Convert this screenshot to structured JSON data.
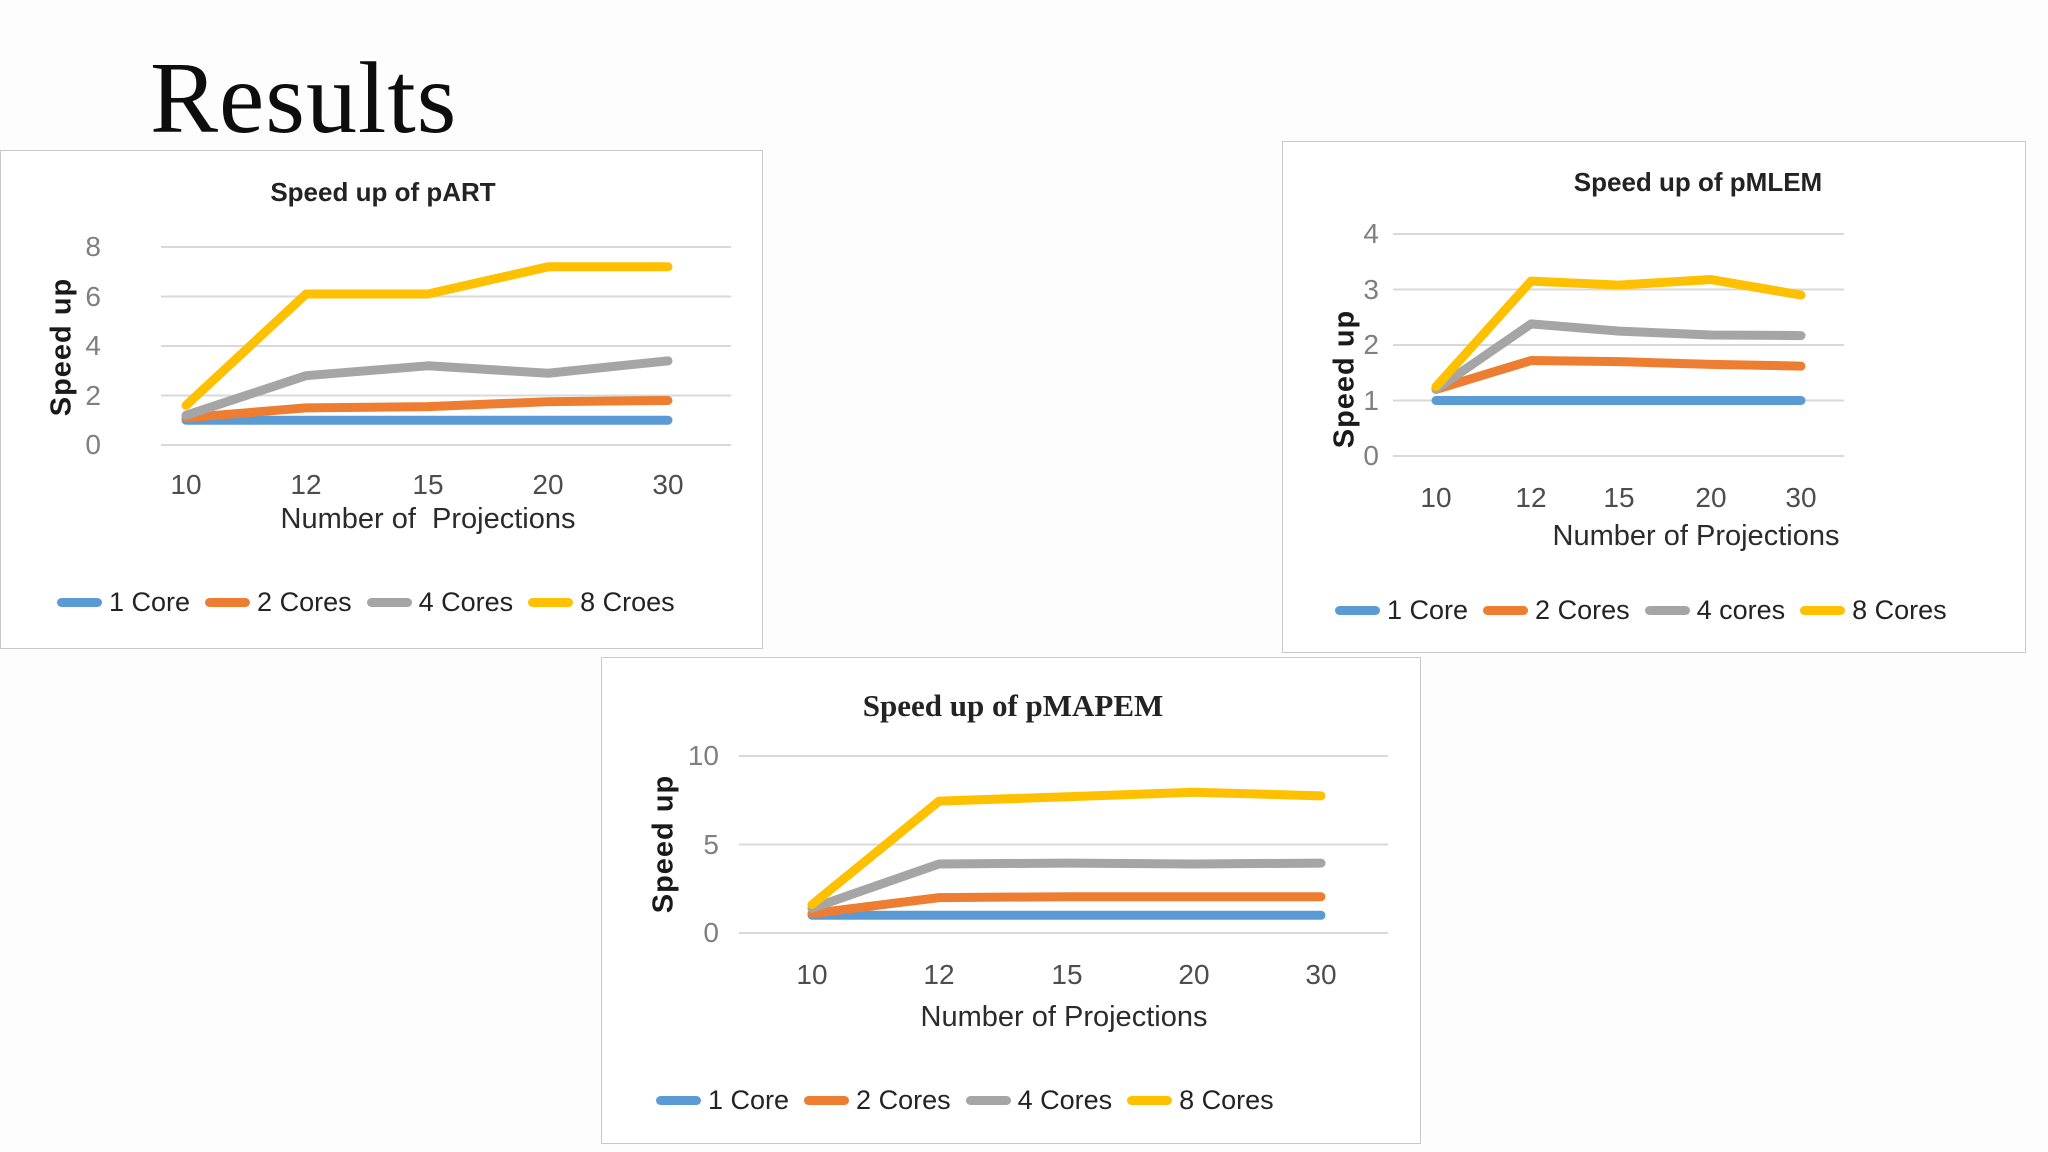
{
  "slide": {
    "title": "Results"
  },
  "chart_data": [
    {
      "type": "line",
      "id": "part",
      "title": "Speed up of pART",
      "xlabel": "Number of  Projections",
      "ylabel": "Speed up",
      "categories": [
        "10",
        "12",
        "15",
        "20",
        "30"
      ],
      "yticks": [
        "0",
        "2",
        "4",
        "6",
        "8"
      ],
      "ylim": [
        0,
        8
      ],
      "grid": true,
      "legend_position": "bottom",
      "series": [
        {
          "name": "1 Core",
          "color": "#5B9BD5",
          "values": [
            1.0,
            1.0,
            1.0,
            1.0,
            1.0
          ]
        },
        {
          "name": "2 Cores",
          "color": "#ED7D31",
          "values": [
            1.1,
            1.5,
            1.55,
            1.75,
            1.8
          ]
        },
        {
          "name": "4 Cores",
          "color": "#A5A5A5",
          "values": [
            1.2,
            2.8,
            3.2,
            2.9,
            3.4
          ]
        },
        {
          "name": "8 Croes",
          "color": "#FFC000",
          "values": [
            1.6,
            6.1,
            6.1,
            7.2,
            7.2
          ]
        }
      ]
    },
    {
      "type": "line",
      "id": "pmlem",
      "title": "Speed up of pMLEM",
      "xlabel": "Number of Projections",
      "ylabel": "Speed up",
      "categories": [
        "10",
        "12",
        "15",
        "20",
        "30"
      ],
      "yticks": [
        "0",
        "1",
        "2",
        "3",
        "4"
      ],
      "ylim": [
        0,
        4
      ],
      "grid": true,
      "legend_position": "bottom",
      "series": [
        {
          "name": "1 Core",
          "color": "#5B9BD5",
          "values": [
            1.0,
            1.0,
            1.0,
            1.0,
            1.0
          ]
        },
        {
          "name": "2 Cores",
          "color": "#ED7D31",
          "values": [
            1.2,
            1.72,
            1.7,
            1.65,
            1.62
          ]
        },
        {
          "name": "4 cores",
          "color": "#A5A5A5",
          "values": [
            1.2,
            2.38,
            2.25,
            2.18,
            2.17
          ]
        },
        {
          "name": "8 Cores",
          "color": "#FFC000",
          "values": [
            1.25,
            3.15,
            3.08,
            3.18,
            2.9
          ]
        }
      ]
    },
    {
      "type": "line",
      "id": "pmapem",
      "title": "Speed up of pMAPEM",
      "xlabel": "Number of Projections",
      "ylabel": "Speed up",
      "categories": [
        "10",
        "12",
        "15",
        "20",
        "30"
      ],
      "yticks": [
        "0",
        "5",
        "10"
      ],
      "ylim": [
        0,
        10
      ],
      "grid": true,
      "legend_position": "bottom",
      "series": [
        {
          "name": "1 Core",
          "color": "#5B9BD5",
          "values": [
            1.0,
            1.0,
            1.0,
            1.0,
            1.0
          ]
        },
        {
          "name": "2 Cores",
          "color": "#ED7D31",
          "values": [
            1.1,
            2.0,
            2.05,
            2.05,
            2.05
          ]
        },
        {
          "name": "4 Cores",
          "color": "#A5A5A5",
          "values": [
            1.4,
            3.9,
            3.95,
            3.9,
            3.95
          ]
        },
        {
          "name": "8 Cores",
          "color": "#FFC000",
          "values": [
            1.6,
            7.45,
            7.7,
            7.95,
            7.75
          ]
        }
      ]
    }
  ]
}
